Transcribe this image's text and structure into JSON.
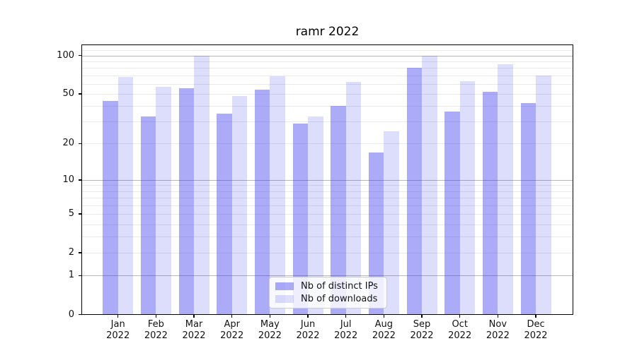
{
  "title": "ramr 2022",
  "legend": {
    "entries": [
      {
        "label": "Nb of distinct IPs",
        "color": "rgba(45,45,235,0.40)"
      },
      {
        "label": "Nb of downloads",
        "color": "rgba(45,45,235,0.16)"
      }
    ],
    "position": "lower center"
  },
  "axes": {
    "ytick_labels": [
      "0",
      "1",
      "2",
      "5",
      "10",
      "20",
      "50",
      "100"
    ],
    "xtick_labels": [
      "Jan 2022",
      "Feb 2022",
      "Mar 2022",
      "Apr 2022",
      "May 2022",
      "Jun 2022",
      "Jul 2022",
      "Aug 2022",
      "Sep 2022",
      "Oct 2022",
      "Nov 2022",
      "Dec 2022"
    ]
  },
  "colors": {
    "background": "#ffffff",
    "axis": "#000000",
    "text": "#111111",
    "major_grid": "#b8b8b8",
    "minor_grid": "#e9e9e9",
    "legend_border": "#cccccc",
    "ip_bar": "rgba(45,45,235,0.40)",
    "downloads_bar": "rgba(45,45,235,0.16)"
  },
  "chart_data": {
    "type": "bar",
    "title": "ramr 2022",
    "xlabel": "",
    "ylabel": "",
    "categories": [
      "Jan 2022",
      "Feb 2022",
      "Mar 2022",
      "Apr 2022",
      "May 2022",
      "Jun 2022",
      "Jul 2022",
      "Aug 2022",
      "Sep 2022",
      "Oct 2022",
      "Nov 2022",
      "Dec 2022"
    ],
    "series": [
      {
        "name": "Nb of distinct IPs",
        "color": "rgba(45,45,235,0.40)",
        "values": [
          44,
          33,
          55,
          35,
          54,
          29,
          40,
          17,
          80,
          36,
          52,
          42
        ]
      },
      {
        "name": "Nb of downloads",
        "color": "rgba(45,45,235,0.16)",
        "values": [
          68,
          57,
          100,
          48,
          69,
          33,
          62,
          25,
          100,
          63,
          85,
          70
        ]
      }
    ],
    "yscale": "log1p",
    "ylim": [
      0,
      122
    ],
    "ytick_values": [
      0,
      1,
      2,
      5,
      10,
      20,
      50,
      100
    ],
    "major_grid_values": [
      1,
      10,
      100
    ],
    "minor_grid_values": [
      2,
      3,
      4,
      5,
      6,
      7,
      8,
      9,
      20,
      30,
      40,
      50,
      60,
      70,
      80,
      90,
      110
    ],
    "grid": true,
    "legend_position": "lower center",
    "bar_layout": "grouped-pair"
  }
}
